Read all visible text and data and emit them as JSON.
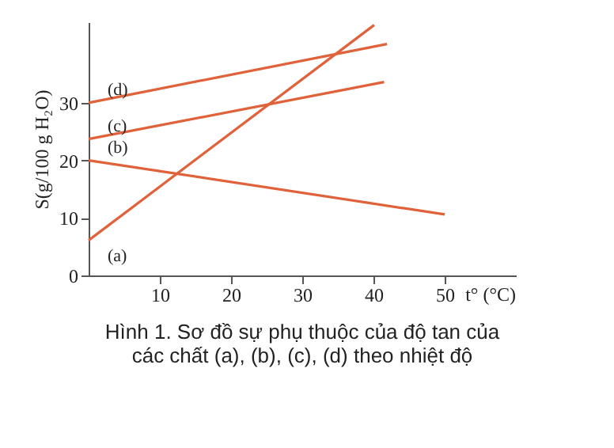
{
  "chart_data": {
    "type": "line",
    "title": "Hình 1. Sơ đồ sự phụ thuộc của độ tan của các chất (a), (b), (c), (d) theo nhiệt độ",
    "xlabel": "t° (°C)",
    "ylabel": "S(g/100 g H₂O)",
    "series": [
      {
        "name": "(a)",
        "color": "#e0623a",
        "x": [
          0,
          40.1
        ],
        "values": [
          6.1,
          43.5
        ]
      },
      {
        "name": "(b)",
        "color": "#e0623a",
        "x": [
          0,
          50
        ],
        "values": [
          20,
          10.6
        ]
      },
      {
        "name": "(c)",
        "color": "#e0623a",
        "x": [
          0,
          41.5
        ],
        "values": [
          23.7,
          33.6
        ]
      },
      {
        "name": "(d)",
        "color": "#e0623a",
        "x": [
          0,
          41.9
        ],
        "values": [
          30,
          40.2
        ]
      }
    ],
    "xlim": [
      0,
      60
    ],
    "ylim": [
      0,
      44
    ],
    "xticks": [
      10,
      20,
      30,
      40,
      50
    ],
    "yticks": [
      0,
      10,
      20,
      30
    ],
    "grid": false,
    "legend": false,
    "marker": "none",
    "line_style": "solid"
  }
}
